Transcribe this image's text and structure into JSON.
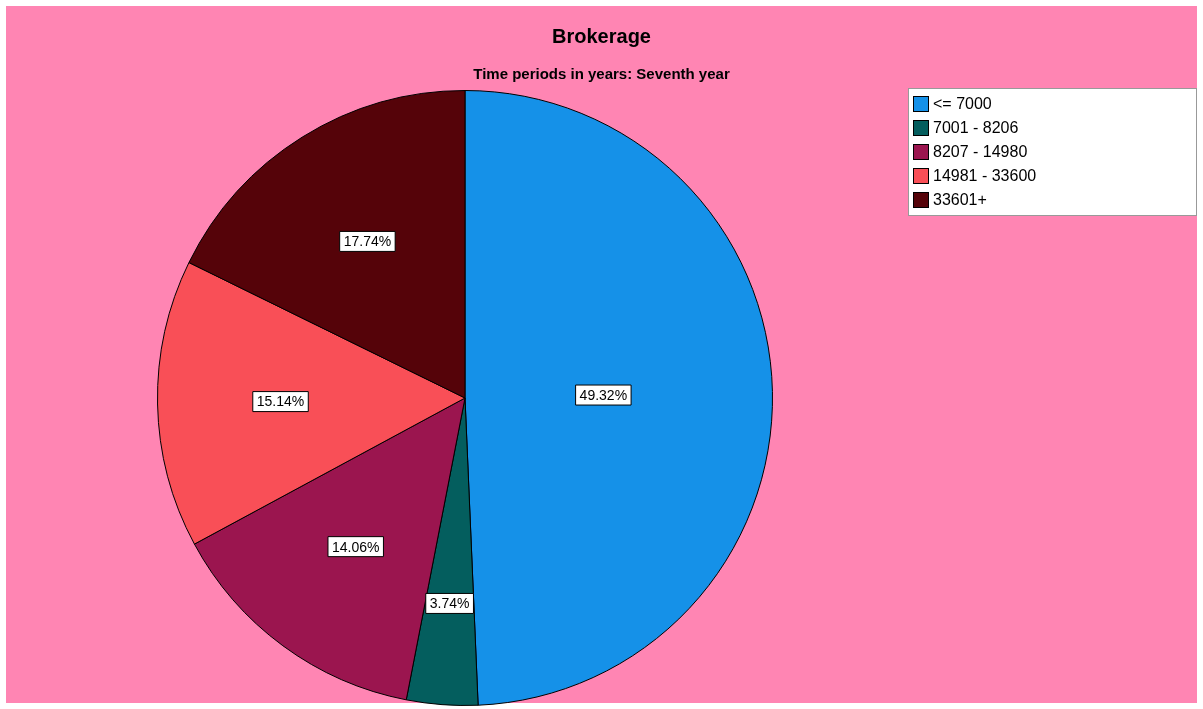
{
  "chart_data": {
    "type": "pie",
    "title": "Brokerage",
    "subtitle": "Time periods in years: Seventh year",
    "categories": [
      "<= 7000",
      "7001 - 8206",
      "8207 - 14980",
      "14981 - 33600",
      "33601+"
    ],
    "values": [
      49.32,
      3.74,
      14.06,
      15.14,
      17.74
    ],
    "value_labels": [
      "49.32%",
      "3.74%",
      "14.06%",
      "15.14%",
      "17.74%"
    ],
    "colors": [
      "#1591e8",
      "#045e5e",
      "#9b154f",
      "#f94f57",
      "#550309"
    ],
    "legend": "top right"
  }
}
